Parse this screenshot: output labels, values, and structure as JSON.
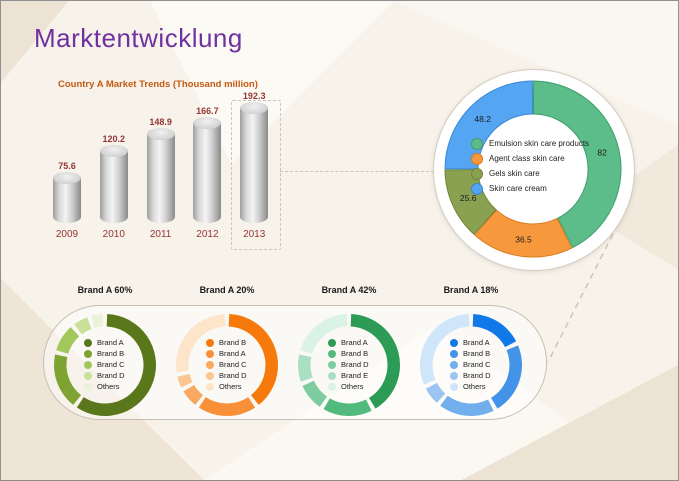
{
  "page": {
    "title": "Marktentwicklung",
    "title_color": "#7030a0",
    "background_color": "#f7f2ea",
    "connector_color": "#ccc4b6"
  },
  "chart_data": [
    {
      "id": "country-a-market-trends",
      "type": "bar",
      "title": "Country A Market Trends (Thousand million)",
      "title_color": "#c45911",
      "bar_style": "gray-3d-cylinder",
      "label_color": "#943634",
      "categories": [
        "2009",
        "2010",
        "2011",
        "2012",
        "2013"
      ],
      "values": [
        75.6,
        120.2,
        148.9,
        166.7,
        192.3
      ],
      "highlighted_category": "2013",
      "ylim": [
        0,
        200
      ],
      "grid": false
    },
    {
      "id": "skin-care-category-donut",
      "type": "pie",
      "subtype": "donut",
      "total": 192.3,
      "legend_position": "center",
      "data_labels_visible": true,
      "segments": [
        {
          "label": "Emulsion skin care products",
          "value": 82,
          "color": "#5dbd8a",
          "edge": "#3e9e6b"
        },
        {
          "label": "Agent class skin care",
          "value": 36.5,
          "color": "#f7983c",
          "edge": "#d87c1e"
        },
        {
          "label": "Gels skin care",
          "value": 25.6,
          "color": "#8ba152",
          "edge": "#6e8338"
        },
        {
          "label": "Skin care cream",
          "value": 48.2,
          "color": "#54a5f2",
          "edge": "#3a87d6"
        }
      ]
    },
    {
      "id": "brand-share-1",
      "type": "pie",
      "subtype": "donut",
      "title": "Brand A 60%",
      "stated_share": "Brand A 60%",
      "estimated_segments": true,
      "segments": [
        {
          "label": "Brand A",
          "value": 60,
          "color": "#5b771c"
        },
        {
          "label": "Brand B",
          "value": 19,
          "color": "#7ea332"
        },
        {
          "label": "Brand C",
          "value": 10,
          "color": "#a3c75b"
        },
        {
          "label": "Brand D",
          "value": 6,
          "color": "#c9e098"
        },
        {
          "label": "Others",
          "value": 5,
          "color": "#eaf3d8"
        }
      ]
    },
    {
      "id": "brand-share-2",
      "type": "pie",
      "subtype": "donut",
      "title": "Brand A 20%",
      "stated_share": "Brand A 20%",
      "estimated_segments": true,
      "segments": [
        {
          "label": "Brand B",
          "value": 40,
          "color": "#f5790b"
        },
        {
          "label": "Brand A",
          "value": 20,
          "color": "#f79038"
        },
        {
          "label": "Brand C",
          "value": 7,
          "color": "#f9a95f"
        },
        {
          "label": "Brand D",
          "value": 5,
          "color": "#fbc68f"
        },
        {
          "label": "Others",
          "value": 28,
          "color": "#fce5c9"
        }
      ]
    },
    {
      "id": "brand-share-3",
      "type": "pie",
      "subtype": "donut",
      "title": "Brand A 42%",
      "stated_share": "Brand A 42%",
      "estimated_segments": true,
      "segments": [
        {
          "label": "Brand A",
          "value": 42,
          "color": "#2c9b55"
        },
        {
          "label": "Brand B",
          "value": 17,
          "color": "#52ba7d"
        },
        {
          "label": "Brand D",
          "value": 10,
          "color": "#7ccc9f"
        },
        {
          "label": "Brand E",
          "value": 10,
          "color": "#abdfc4"
        },
        {
          "label": "Others",
          "value": 21,
          "color": "#dbf2e6"
        }
      ]
    },
    {
      "id": "brand-share-4",
      "type": "pie",
      "subtype": "donut",
      "title": "Brand A 18%",
      "stated_share": "Brand A 18%",
      "estimated_segments": true,
      "segments": [
        {
          "label": "Brand A",
          "value": 18,
          "color": "#1178e8"
        },
        {
          "label": "Brand B",
          "value": 24,
          "color": "#4394e9"
        },
        {
          "label": "Brand C",
          "value": 19,
          "color": "#70aeec"
        },
        {
          "label": "Brand D",
          "value": 7,
          "color": "#9cc5f1"
        },
        {
          "label": "Others",
          "value": 32,
          "color": "#cfe5fa"
        }
      ]
    }
  ]
}
